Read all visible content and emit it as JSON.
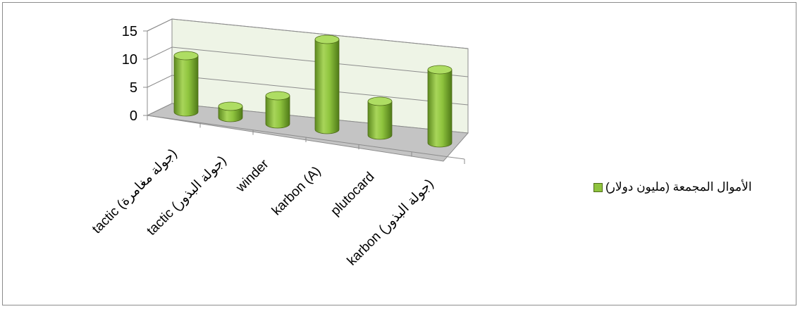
{
  "chart_data": {
    "type": "bar",
    "style": "3d-cylinder",
    "categories": [
      "tactic (جولة مغامرة)",
      "tactic (جولة البذور)",
      "winder",
      "karbon (A)",
      "plutocard",
      "karbon (جولة البذور)"
    ],
    "series": [
      {
        "name": "الأموال المجمعة (مليون دولار)",
        "values": [
          10,
          2,
          5,
          16,
          6,
          13
        ]
      }
    ],
    "yticks": [
      "0",
      "5",
      "10",
      "15"
    ],
    "ylim": [
      0,
      15
    ],
    "grid": true,
    "legend_position": "right",
    "colors": {
      "bar": "#8fc43e",
      "bar_dark": "#5d8a1f",
      "bar_top": "#aedd63",
      "wall": "#eef4e6",
      "floor": "#c4c4c4"
    }
  }
}
